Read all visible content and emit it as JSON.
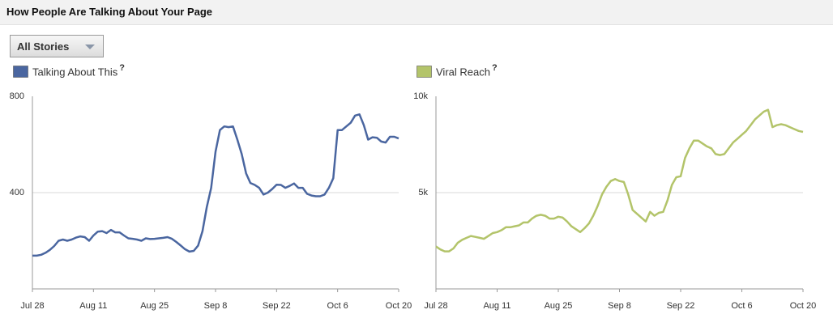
{
  "header": {
    "title": "How People Are Talking About Your Page"
  },
  "filter": {
    "label": "All Stories"
  },
  "chart_data": [
    {
      "type": "line",
      "help": "?",
      "categories": [
        "Jul 28",
        null,
        null,
        null,
        null,
        null,
        null,
        null,
        null,
        null,
        null,
        null,
        null,
        null,
        "Aug 11",
        null,
        null,
        null,
        null,
        null,
        null,
        null,
        null,
        null,
        null,
        null,
        null,
        null,
        "Aug 25",
        null,
        null,
        null,
        null,
        null,
        null,
        null,
        null,
        null,
        null,
        null,
        null,
        null,
        "Sep 8",
        null,
        null,
        null,
        null,
        null,
        null,
        null,
        null,
        null,
        null,
        null,
        null,
        null,
        "Sep 22",
        null,
        null,
        null,
        null,
        null,
        null,
        null,
        null,
        null,
        null,
        null,
        null,
        null,
        "Oct 6",
        null,
        null,
        null,
        null,
        null,
        null,
        null,
        null,
        null,
        null,
        null,
        null,
        null,
        "Oct 20"
      ],
      "series": [
        {
          "name": "Talking About This",
          "color": "#4a66a0",
          "values": [
            138,
            138,
            142,
            150,
            162,
            178,
            200,
            205,
            200,
            205,
            213,
            218,
            215,
            200,
            222,
            238,
            240,
            232,
            245,
            235,
            235,
            222,
            210,
            208,
            205,
            200,
            210,
            207,
            208,
            210,
            212,
            215,
            208,
            195,
            180,
            165,
            155,
            158,
            180,
            240,
            340,
            420,
            570,
            660,
            675,
            672,
            675,
            620,
            560,
            480,
            440,
            432,
            420,
            392,
            400,
            415,
            433,
            432,
            420,
            428,
            438,
            420,
            420,
            395,
            388,
            385,
            385,
            392,
            420,
            460,
            660,
            660,
            675,
            690,
            720,
            725,
            680,
            620,
            630,
            628,
            612,
            608,
            632,
            632,
            625
          ]
        }
      ],
      "ylim": [
        0,
        800
      ],
      "yticks": [
        400,
        800
      ],
      "grid": true
    },
    {
      "type": "line",
      "help": "?",
      "categories": [
        "Jul 28",
        null,
        null,
        null,
        null,
        null,
        null,
        null,
        null,
        null,
        null,
        null,
        null,
        null,
        "Aug 11",
        null,
        null,
        null,
        null,
        null,
        null,
        null,
        null,
        null,
        null,
        null,
        null,
        null,
        "Aug 25",
        null,
        null,
        null,
        null,
        null,
        null,
        null,
        null,
        null,
        null,
        null,
        null,
        null,
        "Sep 8",
        null,
        null,
        null,
        null,
        null,
        null,
        null,
        null,
        null,
        null,
        null,
        null,
        null,
        "Sep 22",
        null,
        null,
        null,
        null,
        null,
        null,
        null,
        null,
        null,
        null,
        null,
        null,
        null,
        "Oct 6",
        null,
        null,
        null,
        null,
        null,
        null,
        null,
        null,
        null,
        null,
        null,
        null,
        null,
        "Oct 20"
      ],
      "series": [
        {
          "name": "Viral Reach",
          "color": "#b3c46a",
          "values": [
            2200,
            2050,
            1950,
            1950,
            2100,
            2400,
            2550,
            2650,
            2750,
            2700,
            2650,
            2600,
            2750,
            2900,
            2950,
            3050,
            3200,
            3200,
            3250,
            3300,
            3450,
            3450,
            3650,
            3800,
            3850,
            3800,
            3650,
            3650,
            3750,
            3700,
            3500,
            3250,
            3100,
            2950,
            3150,
            3400,
            3800,
            4300,
            4900,
            5300,
            5600,
            5700,
            5600,
            5550,
            4900,
            4100,
            3900,
            3700,
            3500,
            4000,
            3800,
            3950,
            4000,
            4600,
            5400,
            5800,
            5850,
            6800,
            7300,
            7700,
            7700,
            7550,
            7400,
            7300,
            7000,
            6950,
            7000,
            7300,
            7600,
            7800,
            8000,
            8200,
            8500,
            8800,
            9000,
            9200,
            9300,
            8400,
            8500,
            8550,
            8500,
            8400,
            8300,
            8200,
            8150
          ]
        }
      ],
      "ylim": [
        0,
        10000
      ],
      "yticks": [
        {
          "value": 5000,
          "label": "5k"
        },
        {
          "value": 10000,
          "label": "10k"
        }
      ],
      "grid": true
    }
  ]
}
